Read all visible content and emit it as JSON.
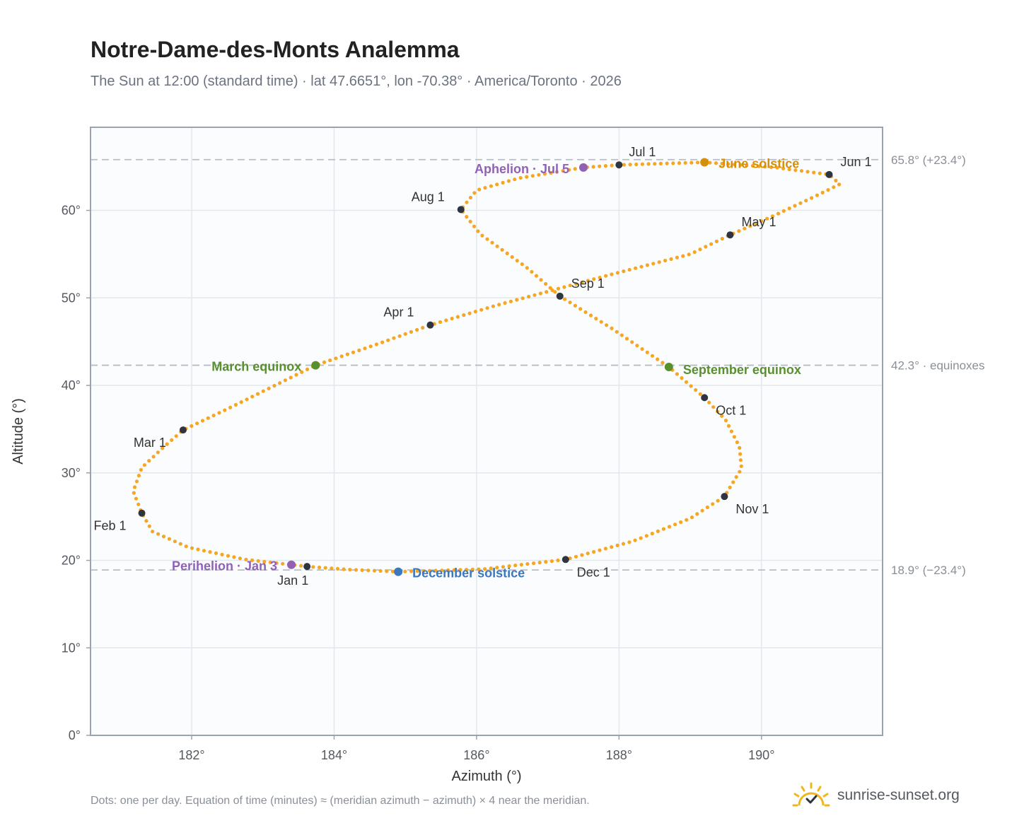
{
  "title": "Notre-Dame-des-Monts Analemma",
  "subtitle": "The Sun at 12:00 (standard time) · lat 47.6651°, lon -70.38° · America/Toronto · 2026",
  "footnote": "Dots: one per day. Equation of time (minutes) ≈ (meridian azimuth − azimuth) × 4 near the meridian.",
  "brand": {
    "name": "sunrise-sunset.org",
    "icon": "sun-logo-icon"
  },
  "colors": {
    "path": "#f5a623",
    "month_marker": "#2f3540",
    "month_label": "#333333",
    "solstice_june": "#d4900a",
    "solstice_december": "#3a78c2",
    "equinox": "#5a8f2e",
    "apsis": "#9061b5",
    "reference_line": "#b8bec6",
    "plot_bg": "#fafcfe",
    "grid": "#e3e8ee",
    "frame": "#9aa3ae"
  },
  "chart_data": {
    "type": "scatter",
    "xlabel": "Azimuth (°)",
    "ylabel": "Altitude (°)",
    "xlim": [
      180.58,
      191.7
    ],
    "ylim": [
      0,
      69.5
    ],
    "xticks": [
      182,
      184,
      186,
      188,
      190
    ],
    "xtick_labels": [
      "182°",
      "184°",
      "186°",
      "188°",
      "190°"
    ],
    "yticks": [
      0,
      10,
      20,
      30,
      40,
      50,
      60
    ],
    "ytick_labels": [
      "0°",
      "10°",
      "20°",
      "30°",
      "40°",
      "50°",
      "60°"
    ],
    "grid": true,
    "analemma_outline": [
      [
        183.62,
        19.3
      ],
      [
        182.75,
        20.1
      ],
      [
        181.95,
        21.5
      ],
      [
        181.45,
        23.3
      ],
      [
        181.3,
        25.4
      ],
      [
        181.18,
        27.9
      ],
      [
        181.3,
        30.6
      ],
      [
        181.6,
        32.9
      ],
      [
        181.88,
        34.9
      ],
      [
        182.55,
        37.5
      ],
      [
        183.74,
        42.3
      ],
      [
        184.6,
        44.7
      ],
      [
        185.35,
        46.9
      ],
      [
        186.3,
        49.2
      ],
      [
        187.9,
        52.7
      ],
      [
        189.0,
        55.0
      ],
      [
        189.56,
        57.2
      ],
      [
        190.2,
        59.5
      ],
      [
        190.75,
        61.6
      ],
      [
        191.1,
        63.0
      ],
      [
        190.95,
        64.1
      ],
      [
        190.2,
        64.9
      ],
      [
        189.2,
        65.5
      ],
      [
        188.0,
        65.2
      ],
      [
        187.5,
        64.9
      ],
      [
        186.6,
        63.7
      ],
      [
        186.0,
        62.3
      ],
      [
        185.78,
        60.1
      ],
      [
        186.05,
        57.3
      ],
      [
        186.7,
        53.5
      ],
      [
        187.17,
        50.2
      ],
      [
        187.9,
        46.5
      ],
      [
        188.7,
        42.1
      ],
      [
        189.2,
        38.6
      ],
      [
        189.5,
        36.0
      ],
      [
        189.69,
        33.0
      ],
      [
        189.72,
        30.5
      ],
      [
        189.48,
        27.3
      ],
      [
        189.0,
        24.8
      ],
      [
        188.2,
        22.2
      ],
      [
        187.25,
        20.1
      ],
      [
        186.1,
        19.0
      ],
      [
        184.9,
        18.7
      ],
      [
        184.2,
        18.95
      ],
      [
        183.62,
        19.3
      ]
    ],
    "dot_count": 365,
    "month_markers": [
      {
        "label": "Jan 1",
        "x": 183.62,
        "y": 19.3
      },
      {
        "label": "Feb 1",
        "x": 181.3,
        "y": 25.4
      },
      {
        "label": "Mar 1",
        "x": 181.88,
        "y": 34.9
      },
      {
        "label": "Apr 1",
        "x": 185.35,
        "y": 46.9
      },
      {
        "label": "May 1",
        "x": 189.56,
        "y": 57.2
      },
      {
        "label": "Jun 1",
        "x": 190.95,
        "y": 64.1
      },
      {
        "label": "Jul 1",
        "x": 188.0,
        "y": 65.2
      },
      {
        "label": "Aug 1",
        "x": 185.78,
        "y": 60.1
      },
      {
        "label": "Sep 1",
        "x": 187.17,
        "y": 50.2
      },
      {
        "label": "Oct 1",
        "x": 189.2,
        "y": 38.6
      },
      {
        "label": "Nov 1",
        "x": 189.48,
        "y": 27.3
      },
      {
        "label": "Dec 1",
        "x": 187.25,
        "y": 20.1
      }
    ],
    "events": [
      {
        "label": "June solstice",
        "kind": "solstice_june",
        "x": 189.2,
        "y": 65.5
      },
      {
        "label": "December solstice",
        "kind": "solstice_december",
        "x": 184.9,
        "y": 18.7
      },
      {
        "label": "March equinox",
        "kind": "equinox",
        "x": 183.74,
        "y": 42.3
      },
      {
        "label": "September equinox",
        "kind": "equinox",
        "x": 188.7,
        "y": 42.1
      },
      {
        "label": "Aphelion · Jul 5",
        "kind": "apsis",
        "x": 187.5,
        "y": 64.9
      },
      {
        "label": "Perihelion · Jan 3",
        "kind": "apsis",
        "x": 183.4,
        "y": 19.5
      }
    ],
    "reference_lines": [
      {
        "y": 65.8,
        "label": "65.8° (+23.4°)"
      },
      {
        "y": 42.3,
        "label": "42.3° · equinoxes"
      },
      {
        "y": 18.9,
        "label": "18.9° (−23.4°)"
      }
    ]
  }
}
